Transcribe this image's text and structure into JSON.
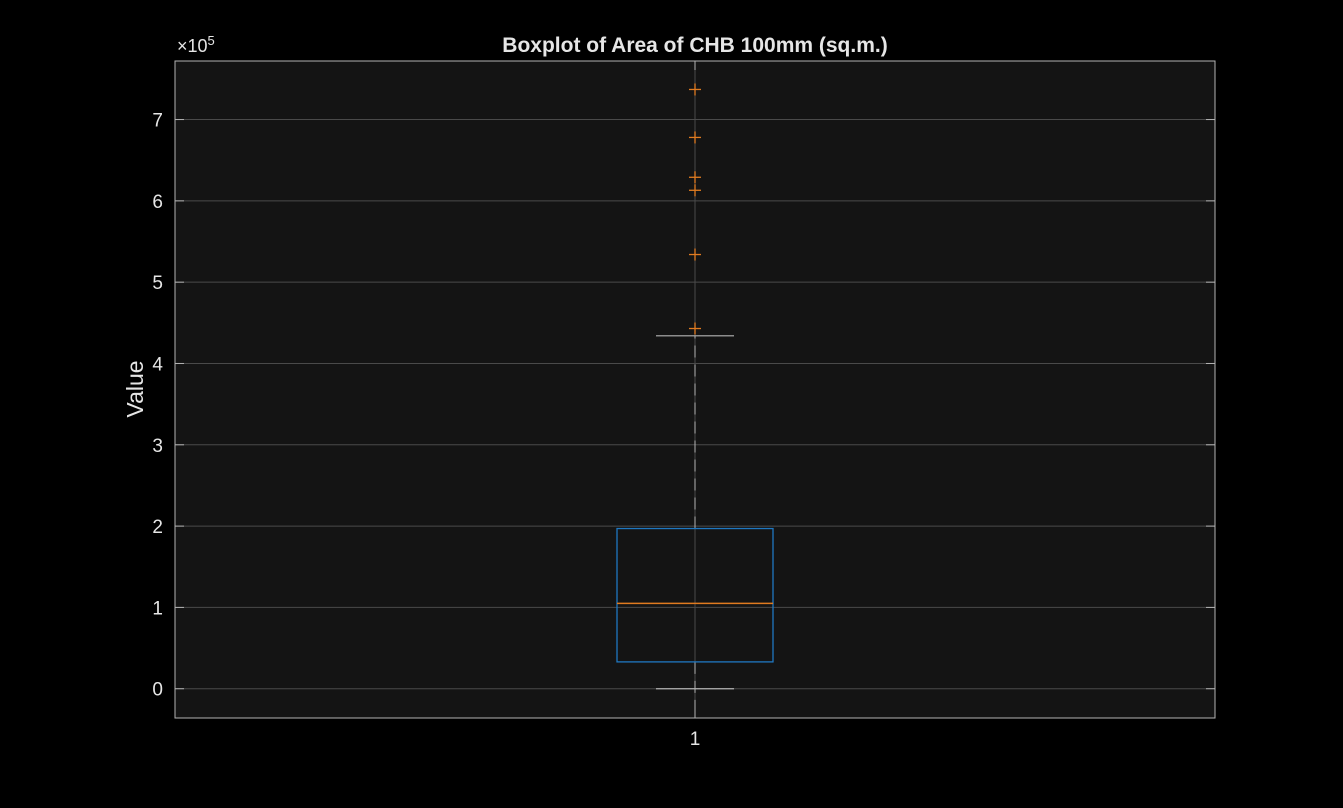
{
  "chart_data": {
    "type": "boxplot",
    "title": "Boxplot of Area of CHB 100mm (sq.m.)",
    "ylabel": "Value",
    "xlabel": "",
    "exponent_prefix": "×10",
    "exponent_power": "5",
    "ylim": [
      -36000,
      772000
    ],
    "y_ticks": [
      0,
      100000,
      200000,
      300000,
      400000,
      500000,
      600000,
      700000
    ],
    "y_tick_labels": [
      "0",
      "1",
      "2",
      "3",
      "4",
      "5",
      "6",
      "7"
    ],
    "categories": [
      "1"
    ],
    "grid": true,
    "box": {
      "min_whisker": 0,
      "q1": 33000,
      "median": 105000,
      "q3": 197000,
      "max_whisker": 434000
    },
    "outliers": [
      443000,
      534000,
      613000,
      629000,
      678000,
      737000
    ],
    "colors": {
      "background": "#000000",
      "plot_background": "#141414",
      "axis": "#b3b3b3",
      "grid": "#4a4a4a",
      "box": "#1f77c0",
      "median": "#e07b20",
      "outlier": "#e07b20",
      "whisker": "#b3b3b3",
      "text": "#e6e6e6"
    }
  }
}
